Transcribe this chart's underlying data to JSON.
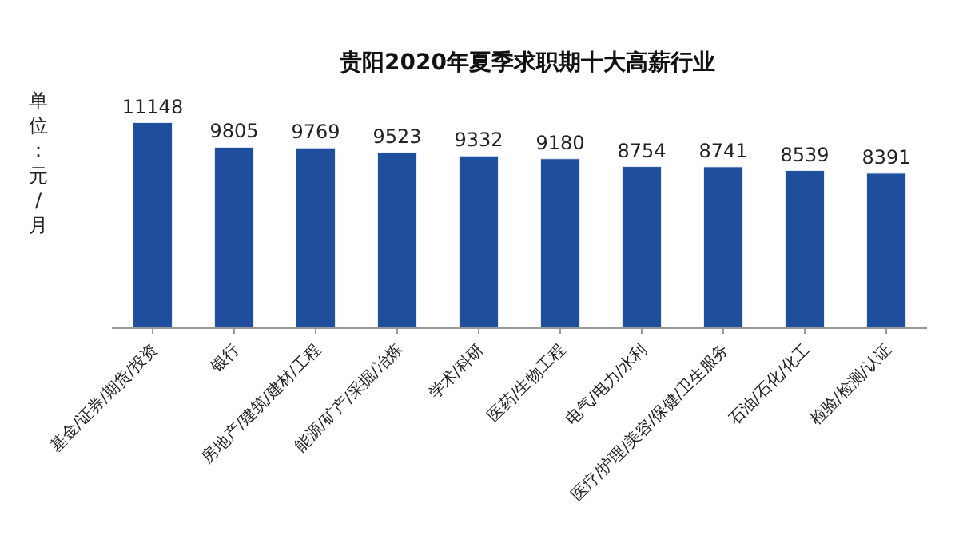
{
  "chart_data": {
    "type": "bar",
    "title": "贵阳2020年夏季求职期十大高薪行业",
    "ylabel": "单位：元/月",
    "categories": [
      "基金/证券/期货/投资",
      "银行",
      "房地产/建筑/建材/工程",
      "能源/矿产/采掘/冶炼",
      "学术/科研",
      "医药/生物工程",
      "电气/电力/水利",
      "医疗/护理/美容/保健/卫生服务",
      "石油/石化/化工",
      "检验/检测/认证"
    ],
    "values": [
      11148,
      9805,
      9769,
      9523,
      9332,
      9180,
      8754,
      8741,
      8539,
      8391
    ],
    "color": "#1f4e9c",
    "data_labels": true,
    "tick_labels": "x"
  }
}
